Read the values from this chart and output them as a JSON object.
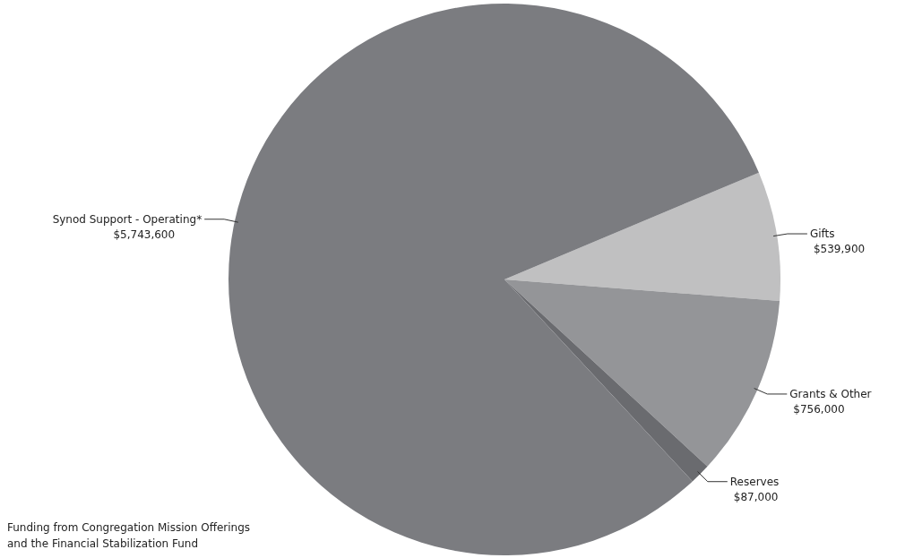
{
  "chart_data": {
    "type": "pie",
    "categories": [
      "Gifts",
      "Grants & Other",
      "Reserves",
      "Synod Support - Operating*"
    ],
    "values": [
      539900,
      756000,
      87000,
      5743600
    ],
    "colors": [
      "#c0c0c1",
      "#949598",
      "#6a6b6f",
      "#7b7c80"
    ],
    "value_labels": [
      "$539,900",
      "$756,000",
      "$87,000",
      "$5,743,600"
    ],
    "annotations": [
      "Funding from Congregation Mission Offerings and the Financial Stabilization Fund"
    ]
  }
}
